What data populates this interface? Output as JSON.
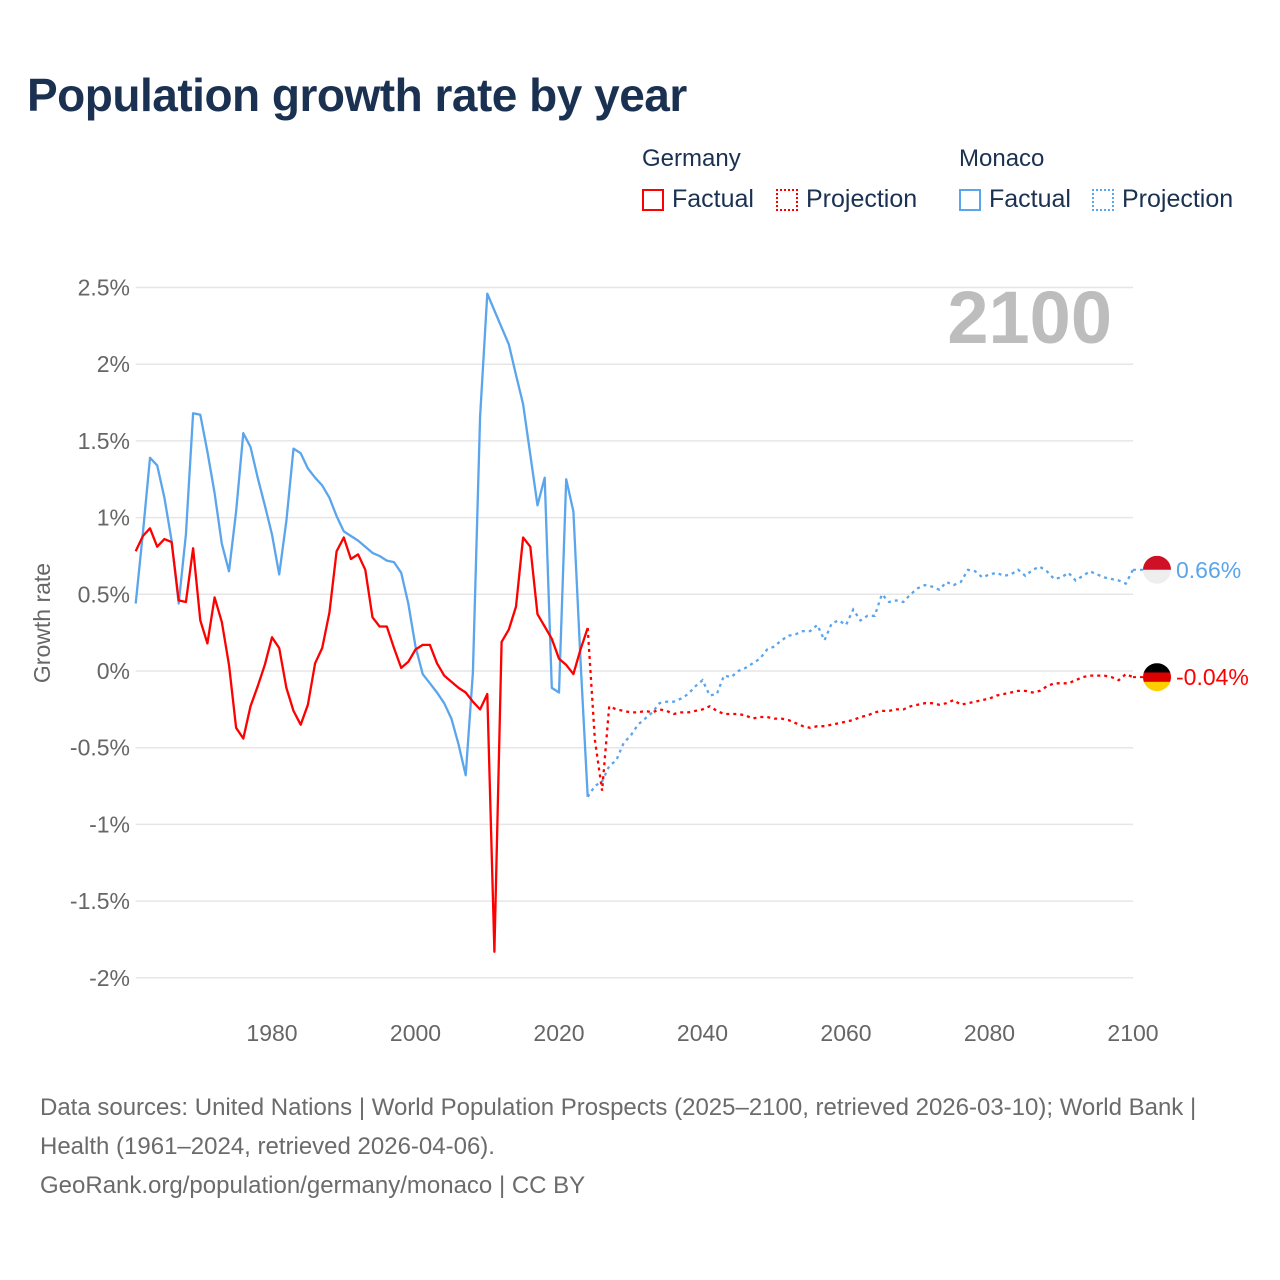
{
  "title": "Population growth rate by year",
  "legend": {
    "groups": [
      {
        "name": "Germany",
        "factual": "Factual",
        "projection": "Projection",
        "color": "#ff0000"
      },
      {
        "name": "Monaco",
        "factual": "Factual",
        "projection": "Projection",
        "color": "#5aa5ec"
      }
    ]
  },
  "chart_data": {
    "type": "line",
    "title": "Population growth rate by year",
    "xlabel": "",
    "ylabel": "Growth rate",
    "xlim": [
      1961,
      2100
    ],
    "ylim": [
      -2.1,
      2.6
    ],
    "x_ticks": [
      "1980",
      "2000",
      "2020",
      "2040",
      "2060",
      "2080",
      "2100"
    ],
    "y_ticks": [
      "2.5%",
      "2%",
      "1.5%",
      "1%",
      "0.5%",
      "0%",
      "-0.5%",
      "-1%",
      "-1.5%",
      "-2%"
    ],
    "year_label": "2100",
    "grid": true,
    "series": [
      {
        "name": "Germany",
        "color": "#ff0000",
        "end_label": "-0.04%",
        "factual_start": 1961,
        "factual": [
          0.78,
          0.88,
          0.93,
          0.81,
          0.86,
          0.84,
          0.46,
          0.45,
          0.8,
          0.33,
          0.18,
          0.48,
          0.32,
          0.04,
          -0.37,
          -0.44,
          -0.23,
          -0.1,
          0.04,
          0.22,
          0.15,
          -0.11,
          -0.26,
          -0.35,
          -0.22,
          0.05,
          0.15,
          0.38,
          0.78,
          0.87,
          0.73,
          0.76,
          0.66,
          0.35,
          0.29,
          0.29,
          0.15,
          0.02,
          0.06,
          0.14,
          0.17,
          0.17,
          0.05,
          -0.03,
          -0.07,
          -0.11,
          -0.14,
          -0.2,
          -0.25,
          -0.15,
          -1.83,
          0.19,
          0.27,
          0.42,
          0.87,
          0.81,
          0.37,
          0.29,
          0.21,
          0.08,
          0.04,
          -0.02,
          0.14,
          0.28
        ],
        "projection_start": 2025,
        "projection": [
          -0.45,
          -0.78,
          -0.23,
          -0.25,
          -0.26,
          -0.27,
          -0.27,
          -0.26,
          -0.27,
          -0.25,
          -0.26,
          -0.28,
          -0.27,
          -0.27,
          -0.26,
          -0.25,
          -0.23,
          -0.26,
          -0.28,
          -0.28,
          -0.28,
          -0.29,
          -0.31,
          -0.3,
          -0.3,
          -0.31,
          -0.31,
          -0.32,
          -0.34,
          -0.36,
          -0.37,
          -0.36,
          -0.36,
          -0.35,
          -0.34,
          -0.33,
          -0.32,
          -0.3,
          -0.29,
          -0.27,
          -0.26,
          -0.26,
          -0.25,
          -0.25,
          -0.23,
          -0.22,
          -0.21,
          -0.21,
          -0.22,
          -0.21,
          -0.19,
          -0.22,
          -0.21,
          -0.2,
          -0.19,
          -0.18,
          -0.16,
          -0.15,
          -0.14,
          -0.13,
          -0.13,
          -0.14,
          -0.13,
          -0.1,
          -0.08,
          -0.08,
          -0.08,
          -0.06,
          -0.04,
          -0.03,
          -0.03,
          -0.03,
          -0.04,
          -0.06,
          -0.02,
          -0.04
        ]
      },
      {
        "name": "Monaco",
        "color": "#5aa5ec",
        "end_label": "0.66%",
        "factual_start": 1961,
        "factual": [
          0.44,
          0.9,
          1.39,
          1.34,
          1.13,
          0.85,
          0.44,
          0.89,
          1.68,
          1.67,
          1.43,
          1.16,
          0.83,
          0.65,
          1.04,
          1.55,
          1.46,
          1.26,
          1.08,
          0.89,
          0.63,
          0.98,
          1.45,
          1.42,
          1.32,
          1.26,
          1.21,
          1.13,
          1.01,
          0.91,
          0.88,
          0.85,
          0.81,
          0.77,
          0.75,
          0.72,
          0.71,
          0.64,
          0.44,
          0.16,
          -0.02,
          -0.08,
          -0.14,
          -0.21,
          -0.31,
          -0.48,
          -0.68,
          -0.01,
          1.66,
          2.46,
          2.35,
          2.24,
          2.13,
          1.93,
          1.74,
          1.41,
          1.08,
          1.26,
          -0.11,
          -0.14,
          1.25,
          1.04,
          0.07,
          -0.82
        ],
        "projection_start": 2025,
        "projection": [
          -0.75,
          -0.72,
          -0.62,
          -0.58,
          -0.47,
          -0.42,
          -0.35,
          -0.31,
          -0.27,
          -0.21,
          -0.2,
          -0.2,
          -0.18,
          -0.15,
          -0.1,
          -0.06,
          -0.16,
          -0.15,
          -0.03,
          -0.04,
          0.0,
          0.02,
          0.05,
          0.08,
          0.14,
          0.16,
          0.2,
          0.23,
          0.24,
          0.26,
          0.26,
          0.3,
          0.2,
          0.31,
          0.33,
          0.3,
          0.4,
          0.33,
          0.36,
          0.36,
          0.5,
          0.45,
          0.46,
          0.45,
          0.5,
          0.54,
          0.56,
          0.55,
          0.53,
          0.58,
          0.56,
          0.58,
          0.66,
          0.65,
          0.61,
          0.63,
          0.64,
          0.62,
          0.63,
          0.66,
          0.62,
          0.66,
          0.68,
          0.65,
          0.6,
          0.61,
          0.64,
          0.59,
          0.62,
          0.65,
          0.63,
          0.61,
          0.6,
          0.59,
          0.57,
          0.66
        ]
      }
    ]
  },
  "sources": {
    "line1": "Data sources: United Nations | World Population Prospects (2025–2100, retrieved 2026-03-10); World Bank | Health (1961–2024, retrieved 2026-04-06).",
    "line2": "GeoRank.org/population/germany/monaco | CC BY"
  }
}
